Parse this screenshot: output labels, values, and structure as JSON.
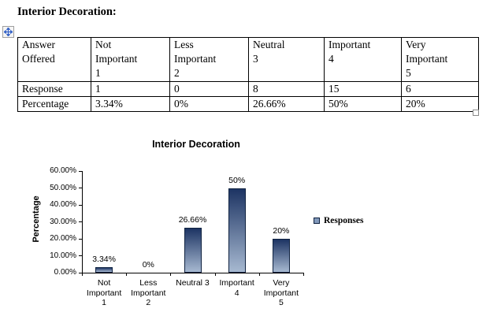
{
  "document": {
    "title": "Interior Decoration:",
    "table": {
      "headers": [
        "Answer\nOffered",
        "Not\nImportant\n1",
        "Less\nImportant\n2",
        "Neutral\n3",
        "Important\n4",
        "Very\nImportant\n5"
      ],
      "rows": [
        {
          "label": "Response",
          "values": [
            "1",
            "0",
            "8",
            "15",
            "6"
          ]
        },
        {
          "label": "Percentage",
          "values": [
            "3.34%",
            "0%",
            "26.66%",
            "50%",
            "20%"
          ]
        }
      ]
    }
  },
  "chart_data": {
    "type": "bar",
    "title": "Interior Decoration",
    "xlabel": "",
    "ylabel": "Percentage",
    "categories": [
      "Not Important 1",
      "Less Important 2",
      "Neutral 3",
      "Important 4",
      "Very Important 5"
    ],
    "category_label_lines": [
      "Not\nImportant\n1",
      "Less\nImportant\n2",
      "Neutral 3",
      "Important\n4",
      "Very\nImportant\n5"
    ],
    "series": [
      {
        "name": "Responses",
        "values": [
          3.34,
          0,
          26.66,
          50,
          20
        ]
      }
    ],
    "data_labels": [
      "3.34%",
      "0%",
      "26.66%",
      "50%",
      "20%"
    ],
    "ylim": [
      0,
      60
    ],
    "ytick_step": 10,
    "ytick_labels": [
      "0.00%",
      "10.00%",
      "20.00%",
      "30.00%",
      "40.00%",
      "50.00%",
      "60.00%"
    ],
    "grid": false,
    "legend": {
      "position": "right",
      "entries": [
        "Responses"
      ]
    },
    "colors": {
      "bar_gradient_top": "#1d3463",
      "bar_gradient_bottom": "#a7b9d1",
      "bar_border": "#0f2240",
      "axis": "#000000"
    }
  }
}
